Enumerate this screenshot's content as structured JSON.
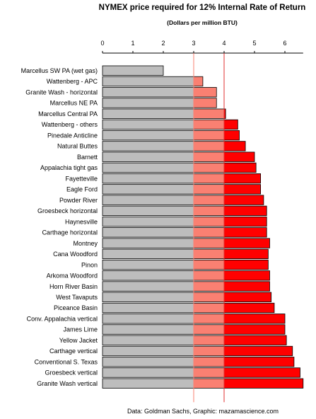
{
  "chart_data": {
    "type": "bar",
    "orientation": "horizontal",
    "title": "NYMEX price required for 12% Internal Rate of Return",
    "subtitle": "(Dollars per million BTU)",
    "xlim": [
      0,
      6.6
    ],
    "xticks": [
      0,
      1,
      2,
      3,
      4,
      5,
      6
    ],
    "reference_lines": [
      3,
      4
    ],
    "grid": false,
    "categories": [
      "Marcellus SW PA (wet gas)",
      "Wattenberg - APC",
      "Granite Wash - horizontal",
      "Marcellus NE PA",
      "Marcellus Central PA",
      "Wattenberg - others",
      "Pinedale Anticline",
      "Natural Buttes",
      "Barnett",
      "Appalachia tight gas",
      "Fayetteville",
      "Eagle Ford",
      "Powder River",
      "Groesbeck horizontal",
      "Haynesville",
      "Carthage horizontal",
      "Montney",
      "Cana Woodford",
      "Pinon",
      "Arkoma Woodford",
      "Horn River Basin",
      "West Tavaputs",
      "Piceance Basin",
      "Conv. Appalachia vertical",
      "James Lime",
      "Yellow Jacket",
      "Carthage vertical",
      "Conventional S. Texas",
      "Groesbeck vertical",
      "Granite Wash vertical"
    ],
    "values": [
      2.0,
      3.3,
      3.75,
      3.75,
      4.05,
      4.45,
      4.5,
      4.7,
      5.0,
      5.05,
      5.2,
      5.2,
      5.3,
      5.4,
      5.4,
      5.4,
      5.5,
      5.45,
      5.45,
      5.5,
      5.5,
      5.55,
      5.65,
      6.0,
      6.0,
      6.05,
      6.25,
      6.3,
      6.5,
      6.6
    ],
    "colors": {
      "low": "#bdbdbd",
      "mid": "#fa8072",
      "high": "#ff0000",
      "line_3": "#fa8072",
      "line_4": "#e03030",
      "outline": "#000000"
    }
  },
  "footer": {
    "caption": "Data: Goldman Sachs,  Graphic: mazamascience.com"
  }
}
